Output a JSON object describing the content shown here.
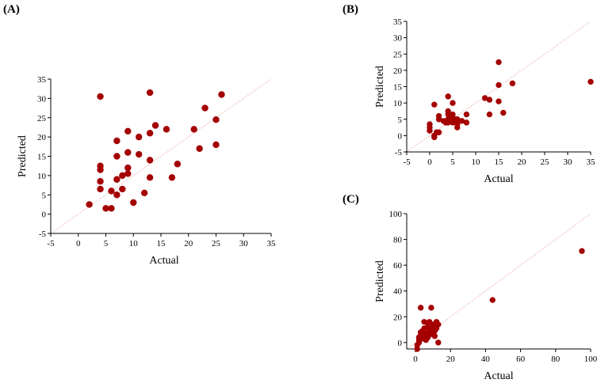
{
  "colors": {
    "point": "#a50000",
    "diagonal": "#e8a0a0",
    "axis": "#000000"
  },
  "chart_data": [
    {
      "panel": "(A)",
      "type": "scatter",
      "xlabel": "Actual",
      "ylabel": "Predicted",
      "xlim": [
        -5,
        35
      ],
      "ylim": [
        -5,
        35
      ],
      "xticks": [
        -5,
        0,
        5,
        10,
        15,
        20,
        25,
        30,
        35
      ],
      "yticks": [
        -5,
        0,
        5,
        10,
        15,
        20,
        25,
        30,
        35
      ],
      "xtick_labels": [
        "-5",
        "0",
        "5",
        "10",
        "15",
        "20",
        "25",
        "30",
        "35"
      ],
      "ytick_labels": [
        "-5",
        "0",
        "5",
        "10",
        "15",
        "20",
        "25",
        "30",
        "35"
      ],
      "reference_line": "y = x",
      "points": [
        [
          2,
          2.5
        ],
        [
          4,
          30.5
        ],
        [
          4,
          12.5
        ],
        [
          4,
          11.5
        ],
        [
          4,
          8.5
        ],
        [
          4,
          6.5
        ],
        [
          5,
          1.5
        ],
        [
          6,
          1.5
        ],
        [
          6,
          6
        ],
        [
          7,
          19
        ],
        [
          7,
          15
        ],
        [
          7,
          9
        ],
        [
          7,
          5
        ],
        [
          8,
          10
        ],
        [
          8,
          6.5
        ],
        [
          9,
          21.5
        ],
        [
          9,
          16
        ],
        [
          9,
          12
        ],
        [
          9,
          10.5
        ],
        [
          10,
          3
        ],
        [
          11,
          20
        ],
        [
          11,
          15.5
        ],
        [
          12,
          5.5
        ],
        [
          13,
          31.5
        ],
        [
          13,
          21
        ],
        [
          13,
          14
        ],
        [
          13,
          9.5
        ],
        [
          14,
          23
        ],
        [
          16,
          22
        ],
        [
          17,
          9.5
        ],
        [
          18,
          13
        ],
        [
          21,
          22
        ],
        [
          22,
          17
        ],
        [
          23,
          27.5
        ],
        [
          25,
          24.5
        ],
        [
          25,
          18
        ],
        [
          26,
          31
        ]
      ]
    },
    {
      "panel": "(B)",
      "type": "scatter",
      "xlabel": "Actual",
      "ylabel": "Predicted",
      "xlim": [
        -5,
        35
      ],
      "ylim": [
        -5,
        35
      ],
      "xticks": [
        -5,
        0,
        5,
        10,
        15,
        20,
        25,
        30,
        35
      ],
      "yticks": [
        -5,
        0,
        5,
        10,
        15,
        20,
        25,
        30,
        35
      ],
      "xtick_labels": [
        "-5",
        "0",
        "5",
        "10",
        "15",
        "20",
        "25",
        "30",
        "35"
      ],
      "ytick_labels": [
        "-5",
        "0",
        "5",
        "10",
        "15",
        "20",
        "25",
        "30",
        "35"
      ],
      "reference_line": "y = x",
      "points": [
        [
          0,
          3.5
        ],
        [
          0,
          2.5
        ],
        [
          0,
          1.5
        ],
        [
          1,
          9.5
        ],
        [
          1,
          0
        ],
        [
          1,
          -0.5
        ],
        [
          1.5,
          1
        ],
        [
          2,
          6
        ],
        [
          2,
          5
        ],
        [
          2,
          1
        ],
        [
          3,
          4.5
        ],
        [
          3.5,
          4
        ],
        [
          4,
          12
        ],
        [
          4,
          7.5
        ],
        [
          4,
          6.5
        ],
        [
          4,
          5
        ],
        [
          4,
          4
        ],
        [
          4.5,
          4.5
        ],
        [
          5,
          10
        ],
        [
          5,
          6.5
        ],
        [
          5,
          5.5
        ],
        [
          5,
          4
        ],
        [
          5.5,
          5
        ],
        [
          6,
          3.5
        ],
        [
          6,
          2.5
        ],
        [
          6,
          5
        ],
        [
          7,
          4.5
        ],
        [
          8,
          6.5
        ],
        [
          8,
          4
        ],
        [
          12,
          11.5
        ],
        [
          13,
          11
        ],
        [
          13,
          6.5
        ],
        [
          15,
          22.5
        ],
        [
          15,
          15.5
        ],
        [
          15,
          10.5
        ],
        [
          16,
          7
        ],
        [
          18,
          16
        ],
        [
          35,
          16.5
        ]
      ]
    },
    {
      "panel": "(C)",
      "type": "scatter",
      "xlabel": "Actual",
      "ylabel": "Predicted",
      "xlim": [
        -5,
        100
      ],
      "ylim": [
        -5,
        100
      ],
      "xticks": [
        0,
        20,
        40,
        60,
        80,
        100
      ],
      "yticks": [
        0,
        20,
        40,
        60,
        80,
        100
      ],
      "xtick_labels": [
        "0",
        "20",
        "40",
        "60",
        "80",
        "100"
      ],
      "ytick_labels": [
        "0",
        "20",
        "40",
        "60",
        "80",
        "100"
      ],
      "reference_line": "y = x",
      "points": [
        [
          1,
          -5
        ],
        [
          1,
          -2
        ],
        [
          2,
          0
        ],
        [
          2,
          2
        ],
        [
          2,
          4
        ],
        [
          3,
          6
        ],
        [
          3,
          8
        ],
        [
          3,
          27
        ],
        [
          4,
          3
        ],
        [
          4,
          9
        ],
        [
          5,
          5
        ],
        [
          5,
          11
        ],
        [
          5,
          16
        ],
        [
          6,
          2
        ],
        [
          6,
          7
        ],
        [
          7,
          4
        ],
        [
          7,
          12
        ],
        [
          7,
          15
        ],
        [
          8,
          6
        ],
        [
          8,
          10
        ],
        [
          8,
          16
        ],
        [
          9,
          7
        ],
        [
          9,
          27
        ],
        [
          10,
          12
        ],
        [
          10,
          14
        ],
        [
          11,
          9
        ],
        [
          11,
          5
        ],
        [
          12,
          11
        ],
        [
          12,
          16
        ],
        [
          13,
          0
        ],
        [
          13,
          14
        ],
        [
          44,
          33
        ],
        [
          95,
          71
        ]
      ]
    }
  ]
}
